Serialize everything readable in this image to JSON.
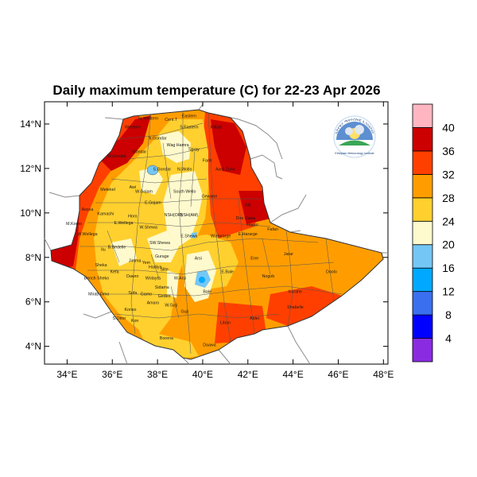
{
  "title": "Daily maximum temperature (C) for 22-23 Apr 2026",
  "map": {
    "lat_ticks": [
      {
        "label": "4°N",
        "value": 4
      },
      {
        "label": "6°N",
        "value": 6
      },
      {
        "label": "8°N",
        "value": 8
      },
      {
        "label": "10°N",
        "value": 10
      },
      {
        "label": "12°N",
        "value": 12
      },
      {
        "label": "14°N",
        "value": 14
      }
    ],
    "lon_ticks": [
      {
        "label": "34°E",
        "value": 34
      },
      {
        "label": "36°E",
        "value": 36
      },
      {
        "label": "38°E",
        "value": 38
      },
      {
        "label": "40°E",
        "value": 40
      },
      {
        "label": "42°E",
        "value": 42
      },
      {
        "label": "44°E",
        "value": 44
      },
      {
        "label": "46°E",
        "value": 46
      },
      {
        "label": "48°E",
        "value": 48
      }
    ],
    "lon_range": [
      33,
      48.2
    ],
    "lat_range": [
      3.2,
      15
    ],
    "region_labels": [
      {
        "name": "N.Western",
        "lon": 37.6,
        "lat": 14.2
      },
      {
        "name": "Cent.T",
        "lon": 38.6,
        "lat": 14.15
      },
      {
        "name": "Eastern",
        "lon": 39.4,
        "lat": 14.3
      },
      {
        "name": "Western",
        "lon": 36.9,
        "lat": 13.8
      },
      {
        "name": "S.Eastern",
        "lon": 39.4,
        "lat": 13.8
      },
      {
        "name": "Kilbati",
        "lon": 40.6,
        "lat": 13.8
      },
      {
        "name": "N.Gondar",
        "lon": 38.0,
        "lat": 13.3
      },
      {
        "name": "Wag Hamra",
        "lon": 38.9,
        "lat": 13.0
      },
      {
        "name": "Gondar",
        "lon": 37.2,
        "lat": 12.7
      },
      {
        "name": "Tigray",
        "lon": 39.6,
        "lat": 12.8
      },
      {
        "name": "W.Gondar",
        "lon": 36.2,
        "lat": 12.5
      },
      {
        "name": "Fanti",
        "lon": 40.2,
        "lat": 12.3
      },
      {
        "name": "S.Gondar",
        "lon": 38.2,
        "lat": 11.9
      },
      {
        "name": "N.Wollo",
        "lon": 39.2,
        "lat": 11.9
      },
      {
        "name": "Awsi Zone",
        "lon": 41.0,
        "lat": 11.9
      },
      {
        "name": "Metekel",
        "lon": 35.8,
        "lat": 11.0
      },
      {
        "name": "Awi",
        "lon": 36.9,
        "lat": 11.1
      },
      {
        "name": "W.Gojam",
        "lon": 37.4,
        "lat": 10.9
      },
      {
        "name": "South Wello",
        "lon": 39.2,
        "lat": 10.9
      },
      {
        "name": "Gewane",
        "lon": 40.3,
        "lat": 10.7
      },
      {
        "name": "E.Gojam",
        "lon": 37.8,
        "lat": 10.4
      },
      {
        "name": "Siti",
        "lon": 42.0,
        "lat": 10.3
      },
      {
        "name": "Asosa",
        "lon": 34.9,
        "lat": 10.1
      },
      {
        "name": "Kamashi",
        "lon": 35.7,
        "lat": 9.9
      },
      {
        "name": "Horo",
        "lon": 36.9,
        "lat": 9.8
      },
      {
        "name": "NSH(OR)",
        "lon": 38.7,
        "lat": 9.85
      },
      {
        "name": "NSH(AM)",
        "lon": 39.4,
        "lat": 9.85
      },
      {
        "name": "Dire Dawa",
        "lon": 41.9,
        "lat": 9.7
      },
      {
        "name": "Harari",
        "lon": 42.2,
        "lat": 9.4
      },
      {
        "name": "M.Komo",
        "lon": 34.3,
        "lat": 9.45
      },
      {
        "name": "E.Wellega",
        "lon": 36.5,
        "lat": 9.5
      },
      {
        "name": "W.Shewa",
        "lon": 37.6,
        "lat": 9.3
      },
      {
        "name": "Fafan",
        "lon": 43.1,
        "lat": 9.2
      },
      {
        "name": "W.Wellega",
        "lon": 34.9,
        "lat": 9.0
      },
      {
        "name": "E.Shewa",
        "lon": 39.4,
        "lat": 8.9
      },
      {
        "name": "W.Hararge",
        "lon": 40.8,
        "lat": 8.9
      },
      {
        "name": "E.Hararge",
        "lon": 42.0,
        "lat": 9.0
      },
      {
        "name": "SW.Shewa",
        "lon": 38.1,
        "lat": 8.6
      },
      {
        "name": "Ilu",
        "lon": 35.6,
        "lat": 8.3
      },
      {
        "name": "B.Bedelle",
        "lon": 36.2,
        "lat": 8.4
      },
      {
        "name": "Arsi",
        "lon": 39.8,
        "lat": 7.9
      },
      {
        "name": "Jimma",
        "lon": 37.0,
        "lat": 7.8
      },
      {
        "name": "Yem",
        "lon": 37.5,
        "lat": 7.7
      },
      {
        "name": "Gurage",
        "lon": 38.2,
        "lat": 8.0
      },
      {
        "name": "Erer",
        "lon": 42.3,
        "lat": 7.9
      },
      {
        "name": "Jarar",
        "lon": 43.8,
        "lat": 8.1
      },
      {
        "name": "Sheka",
        "lon": 35.5,
        "lat": 7.6
      },
      {
        "name": "Kefa",
        "lon": 36.1,
        "lat": 7.3
      },
      {
        "name": "Hadiya",
        "lon": 37.9,
        "lat": 7.5
      },
      {
        "name": "Silte",
        "lon": 38.3,
        "lat": 7.4
      },
      {
        "name": "W.Arsi",
        "lon": 39.0,
        "lat": 7.0
      },
      {
        "name": "E.Bale",
        "lon": 41.1,
        "lat": 7.3
      },
      {
        "name": "Nogob",
        "lon": 42.9,
        "lat": 7.1
      },
      {
        "name": "Doolo",
        "lon": 45.7,
        "lat": 7.3
      },
      {
        "name": "Bench Sheko",
        "lon": 35.3,
        "lat": 7.0
      },
      {
        "name": "Dawro",
        "lon": 36.9,
        "lat": 7.1
      },
      {
        "name": "Wolayta",
        "lon": 37.8,
        "lat": 7.0
      },
      {
        "name": "Sidama",
        "lon": 38.2,
        "lat": 6.6
      },
      {
        "name": "Bale",
        "lon": 40.2,
        "lat": 6.4
      },
      {
        "name": "Korahe",
        "lon": 44.1,
        "lat": 6.4
      },
      {
        "name": "Mirab Omo",
        "lon": 35.4,
        "lat": 6.3
      },
      {
        "name": "Sofa",
        "lon": 36.9,
        "lat": 6.35
      },
      {
        "name": "Gamo",
        "lon": 37.5,
        "lat": 6.3
      },
      {
        "name": "Gedeo",
        "lon": 38.3,
        "lat": 6.2
      },
      {
        "name": "Shabelle",
        "lon": 44.1,
        "lat": 5.7
      },
      {
        "name": "Amaro",
        "lon": 37.8,
        "lat": 5.9
      },
      {
        "name": "W.Guji",
        "lon": 38.6,
        "lat": 5.8
      },
      {
        "name": "Konso",
        "lon": 36.8,
        "lat": 5.6
      },
      {
        "name": "Guji",
        "lon": 39.2,
        "lat": 5.5
      },
      {
        "name": "S.Omo",
        "lon": 36.3,
        "lat": 5.2
      },
      {
        "name": "Kon",
        "lon": 37.0,
        "lat": 5.1
      },
      {
        "name": "Alder",
        "lon": 42.3,
        "lat": 5.2
      },
      {
        "name": "Liban",
        "lon": 41.0,
        "lat": 5.0
      },
      {
        "name": "Borena",
        "lon": 38.4,
        "lat": 4.3
      },
      {
        "name": "Daawa",
        "lon": 40.3,
        "lat": 4.0
      }
    ]
  },
  "colorbar": {
    "labels": [
      "4",
      "8",
      "12",
      "16",
      "20",
      "24",
      "28",
      "32",
      "36",
      "40"
    ],
    "colors": [
      "#8a2be2",
      "#0000ff",
      "#3a6ff0",
      "#00a8ff",
      "#74c7f5",
      "#fffacd",
      "#ffd02e",
      "#ff9d00",
      "#ff3f00",
      "#cc0000",
      "#ffb6c1"
    ]
  },
  "logo": {
    "arc_text": "ኢትዮጵያ ሜትዮሮሎጂ ኢንስቲትዩት",
    "caption": "Ethiopian Meteorology Institute"
  }
}
